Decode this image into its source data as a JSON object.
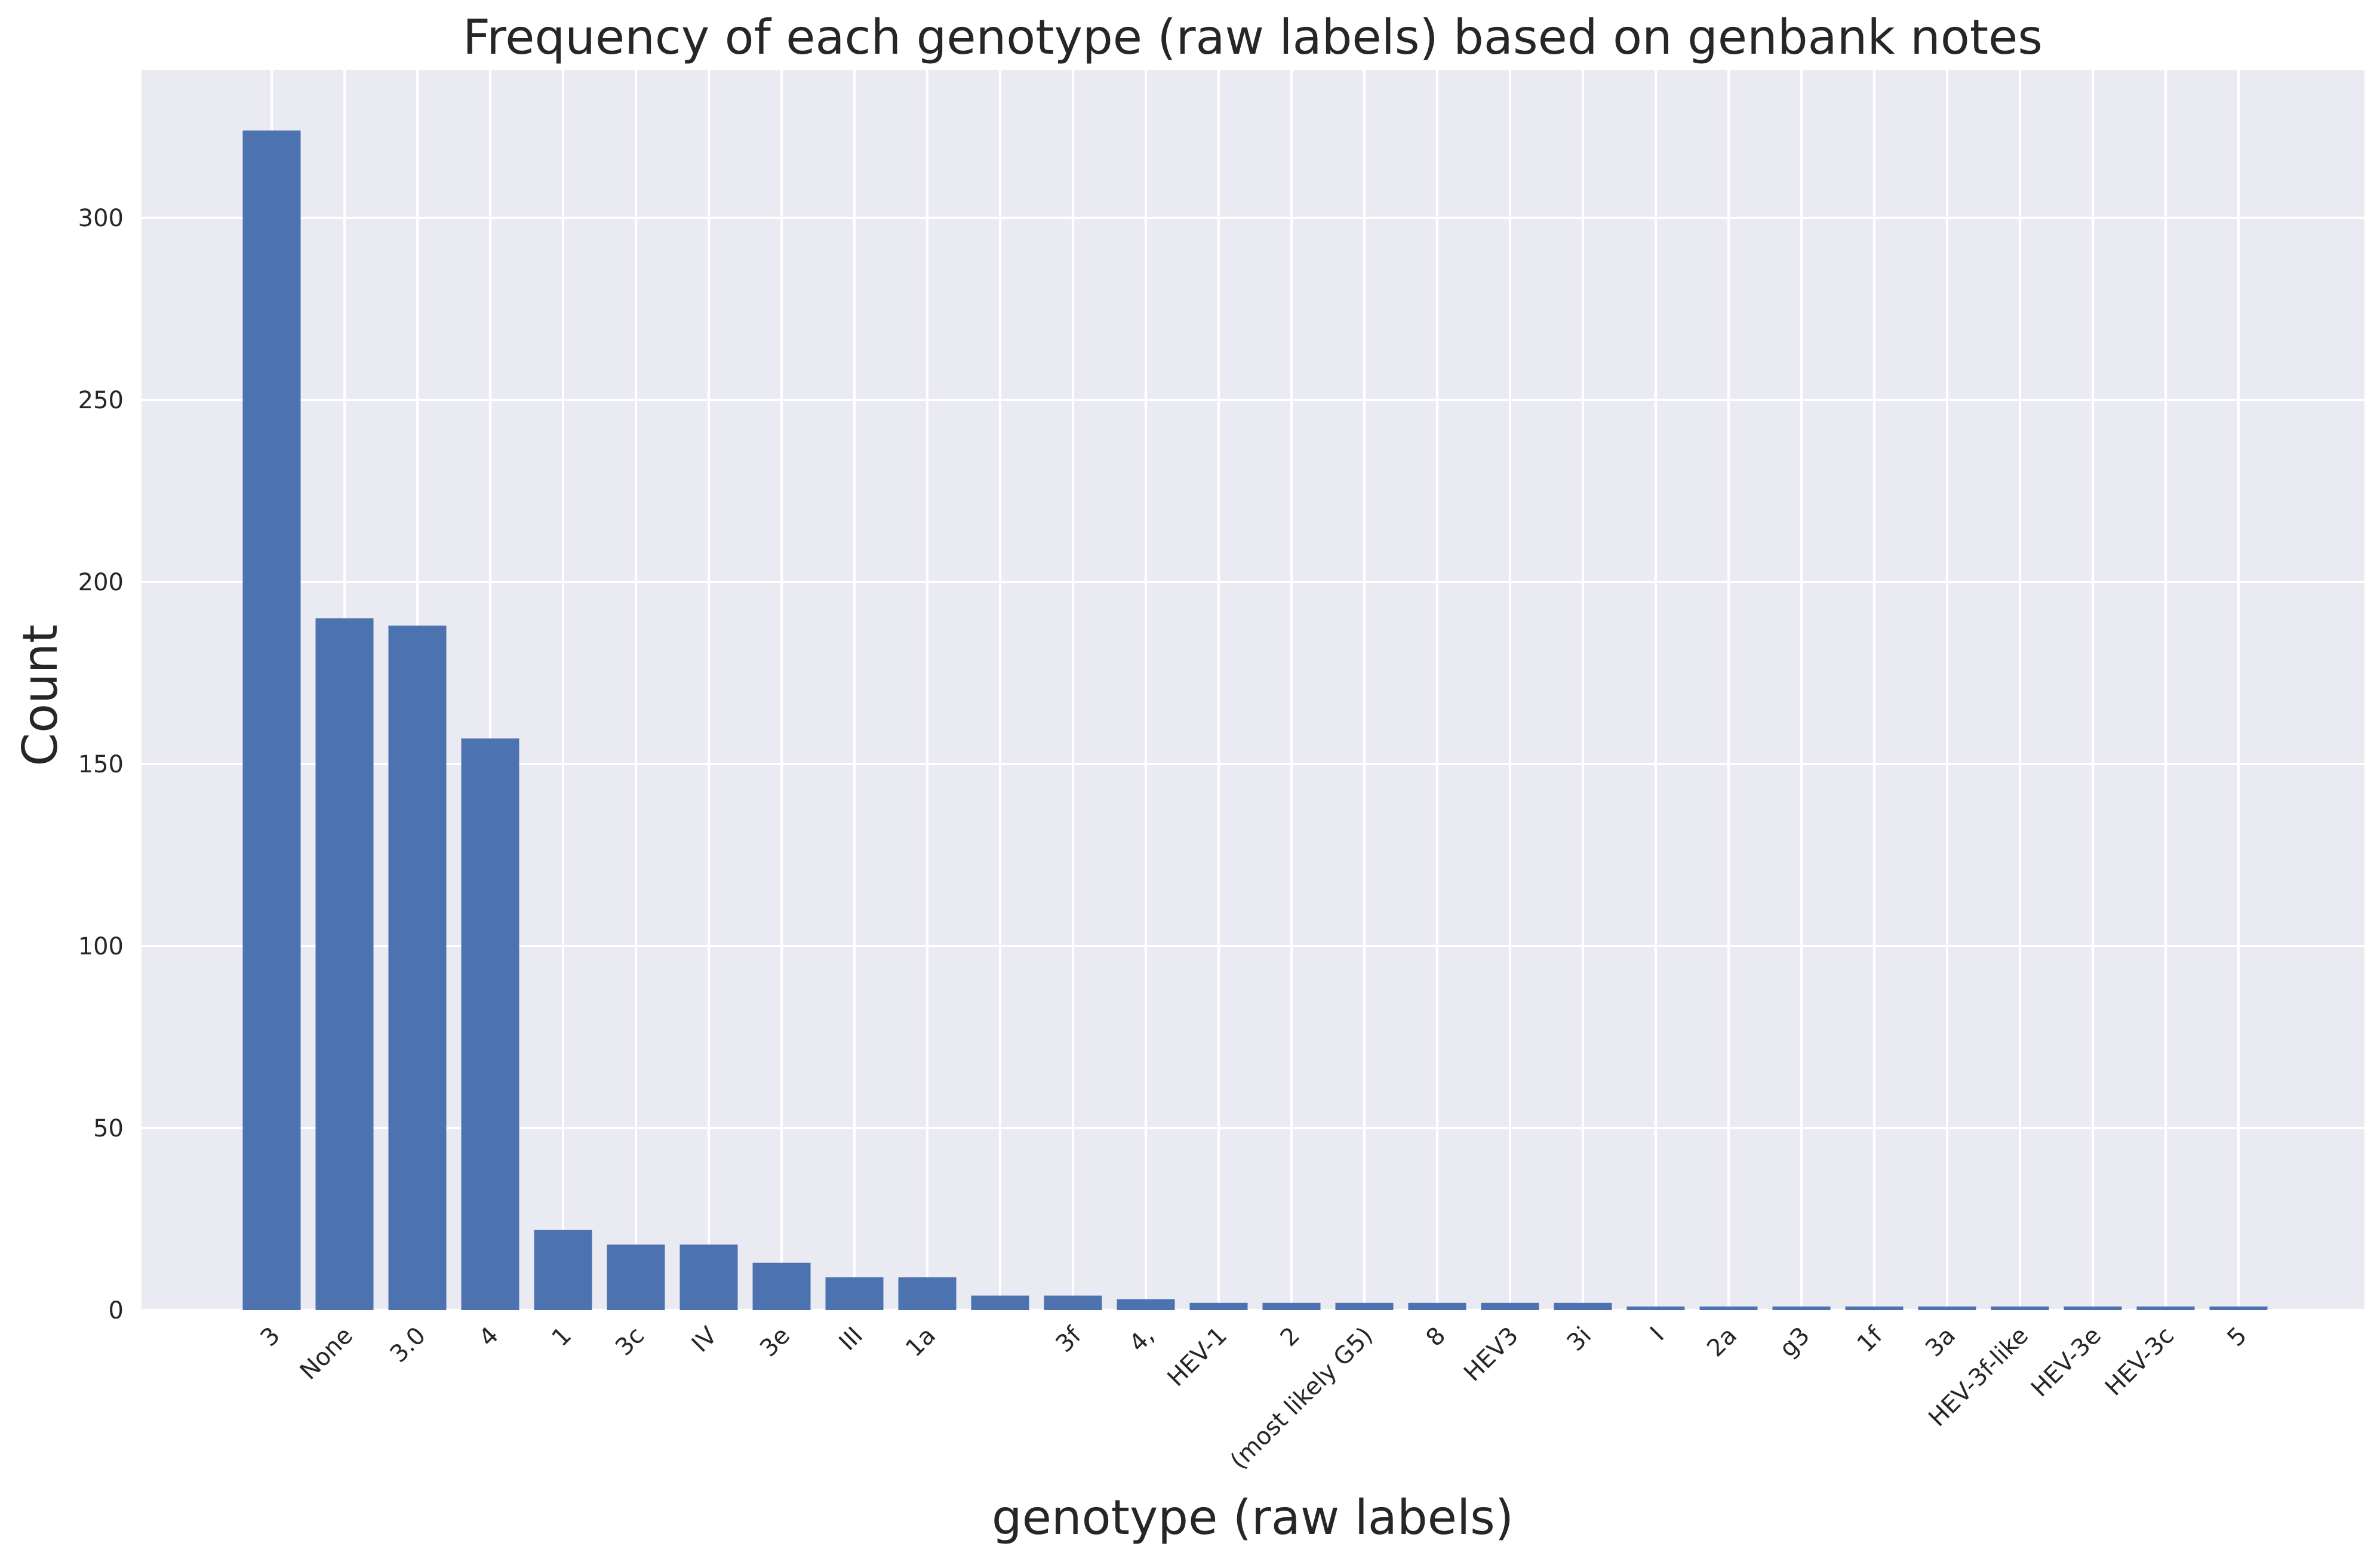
{
  "chart_data": {
    "type": "bar",
    "title": "Frequency of each genotype (raw labels) based on genbank notes",
    "xlabel": "genotype (raw labels)",
    "ylabel": "Count",
    "categories": [
      "3",
      "None",
      "3.0",
      "4",
      "1",
      "3c",
      "IV",
      "3e",
      "III",
      "1a",
      "",
      "3f",
      "4,",
      "HEV-1",
      "2",
      "(most likely G5)",
      "8",
      "HEV3",
      "3i",
      "I",
      "2a",
      "g3",
      "1f",
      "3a",
      "HEV-3f-like",
      "HEV-3e",
      "HEV-3c",
      "5"
    ],
    "values": [
      324,
      190,
      188,
      157,
      22,
      18,
      18,
      13,
      9,
      9,
      4,
      4,
      3,
      2,
      2,
      2,
      2,
      2,
      2,
      1,
      1,
      1,
      1,
      1,
      1,
      1,
      1,
      1
    ],
    "ylim": [
      0,
      340
    ],
    "yticks": [
      0,
      50,
      100,
      150,
      200,
      250,
      300
    ],
    "grid": true,
    "bar_color": "#4c72b0",
    "background_color": "#eaeaf2"
  }
}
